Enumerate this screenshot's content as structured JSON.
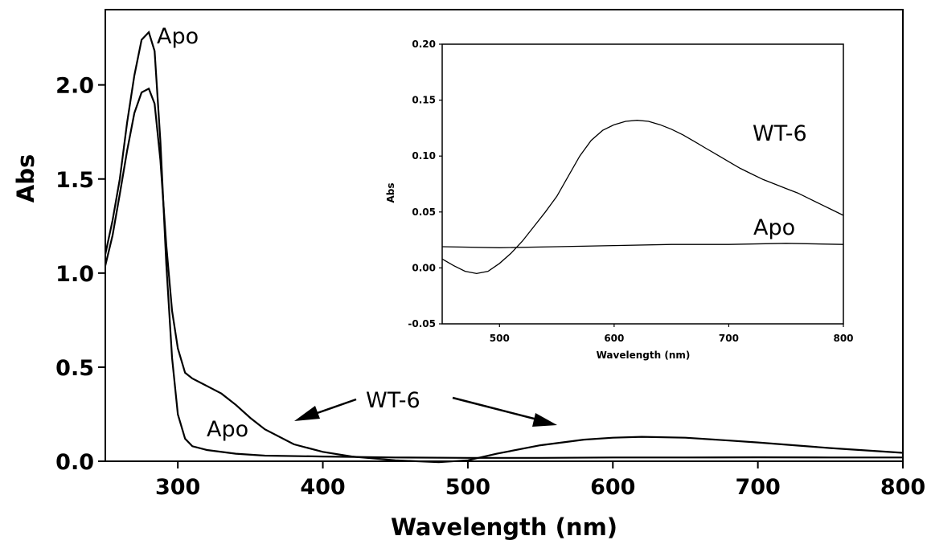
{
  "chart_data": [
    {
      "type": "line",
      "xlabel": "Wavelength (nm)",
      "ylabel": "Abs",
      "xlim": [
        250,
        800
      ],
      "ylim": [
        0,
        2.4
      ],
      "xticks": [
        "300",
        "400",
        "500",
        "600",
        "700",
        "800"
      ],
      "yticks": [
        "0.0",
        "0.5",
        "1.0",
        "1.5",
        "2.0"
      ],
      "grid": false,
      "series": [
        {
          "name": "Apo",
          "x": [
            250,
            255,
            260,
            265,
            270,
            275,
            280,
            284,
            288,
            292,
            296,
            300,
            305,
            310,
            320,
            340,
            360,
            400,
            450,
            500,
            550,
            600,
            650,
            700,
            750,
            800
          ],
          "y": [
            1.1,
            1.28,
            1.5,
            1.8,
            2.05,
            2.24,
            2.28,
            2.18,
            1.7,
            1.05,
            0.55,
            0.25,
            0.12,
            0.08,
            0.06,
            0.04,
            0.03,
            0.025,
            0.02,
            0.018,
            0.018,
            0.02,
            0.02,
            0.021,
            0.02,
            0.02
          ]
        },
        {
          "name": "WT-6",
          "x": [
            250,
            255,
            260,
            265,
            270,
            275,
            280,
            284,
            288,
            292,
            296,
            300,
            305,
            310,
            320,
            330,
            340,
            350,
            360,
            380,
            400,
            420,
            450,
            480,
            500,
            520,
            550,
            580,
            600,
            620,
            650,
            680,
            700,
            750,
            800
          ],
          "y": [
            1.04,
            1.2,
            1.42,
            1.65,
            1.85,
            1.96,
            1.98,
            1.9,
            1.6,
            1.15,
            0.8,
            0.6,
            0.47,
            0.44,
            0.4,
            0.36,
            0.3,
            0.23,
            0.17,
            0.09,
            0.05,
            0.025,
            0.005,
            -0.005,
            0.005,
            0.04,
            0.085,
            0.115,
            0.125,
            0.13,
            0.125,
            0.11,
            0.1,
            0.07,
            0.045
          ]
        }
      ],
      "annotations": [
        "Apo",
        "WT-6",
        "Apo"
      ]
    },
    {
      "type": "line",
      "xlabel": "Wavelength (nm)",
      "ylabel": "Abs",
      "xlim": [
        450,
        800
      ],
      "ylim": [
        -0.05,
        0.2
      ],
      "xticks": [
        "500",
        "600",
        "700",
        "800"
      ],
      "yticks": [
        "-0.05",
        "0.00",
        "0.05",
        "0.10",
        "0.15",
        "0.20"
      ],
      "grid": false,
      "series": [
        {
          "name": "WT-6",
          "x": [
            450,
            460,
            470,
            480,
            490,
            500,
            510,
            520,
            530,
            540,
            550,
            560,
            570,
            580,
            590,
            600,
            610,
            620,
            630,
            640,
            650,
            660,
            670,
            680,
            690,
            700,
            710,
            720,
            730,
            740,
            750,
            760,
            770,
            780,
            790,
            800
          ],
          "y": [
            0.008,
            0.002,
            -0.003,
            -0.005,
            -0.003,
            0.004,
            0.013,
            0.024,
            0.037,
            0.05,
            0.064,
            0.082,
            0.1,
            0.114,
            0.123,
            0.128,
            0.131,
            0.132,
            0.131,
            0.128,
            0.124,
            0.119,
            0.113,
            0.107,
            0.101,
            0.095,
            0.089,
            0.084,
            0.079,
            0.075,
            0.071,
            0.067,
            0.062,
            0.057,
            0.052,
            0.047
          ]
        },
        {
          "name": "Apo",
          "x": [
            450,
            500,
            550,
            600,
            650,
            700,
            750,
            800
          ],
          "y": [
            0.019,
            0.018,
            0.019,
            0.02,
            0.021,
            0.021,
            0.022,
            0.021
          ]
        }
      ],
      "annotations": [
        "WT-6",
        "Apo"
      ]
    }
  ]
}
